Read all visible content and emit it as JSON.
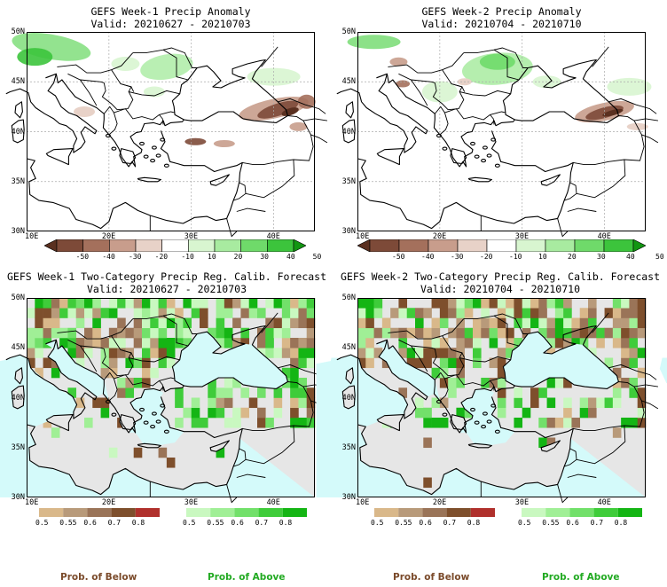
{
  "panels": [
    {
      "id": "p1",
      "title": "GEFS Week-1 Precip Anomaly",
      "valid": "Valid: 20210627 - 20210703"
    },
    {
      "id": "p2",
      "title": "GEFS Week-2 Precip Anomaly",
      "valid": "Valid: 20210704 - 20210710"
    },
    {
      "id": "p3",
      "title": "GEFS Week-1 Two-Category Precip Reg. Calib. Forecast",
      "valid": "Valid: 20210627 - 20210703"
    },
    {
      "id": "p4",
      "title": "GEFS Week-2 Two-Category Precip Reg. Calib. Forecast",
      "valid": "Valid: 20210704 - 20210710"
    }
  ],
  "axes": {
    "lat_ticks": [
      "50N",
      "45N",
      "40N",
      "35N",
      "30N"
    ],
    "lon_ticks": [
      "10E",
      "20E",
      "30E",
      "40E"
    ]
  },
  "anomaly_colorbar": {
    "labels": [
      "-50",
      "-40",
      "-30",
      "-20",
      "-10",
      "10",
      "20",
      "30",
      "40",
      "50"
    ],
    "colors": [
      "#5a3020",
      "#7d4a38",
      "#a4705c",
      "#c89d8c",
      "#e8d2c8",
      "#ffffff",
      "#d8f5d0",
      "#a8eba0",
      "#6fda6a",
      "#3cc43c",
      "#129612"
    ]
  },
  "prob_colorbars": {
    "below": {
      "labels": [
        "0.5",
        "0.55",
        "0.6",
        "0.7",
        "0.8"
      ],
      "colors": [
        "#d9b88a",
        "#b89a7a",
        "#9a7458",
        "#7e4f2c",
        "#b0302c"
      ]
    },
    "above": {
      "labels": [
        "0.5",
        "0.55",
        "0.6",
        "0.7",
        "0.8"
      ],
      "colors": [
        "#c9f8c0",
        "#a0ef96",
        "#72e06a",
        "#3fcc3a",
        "#14b514"
      ]
    }
  },
  "prob_labels": {
    "below": "Prob. of Below",
    "above": "Prob. of Above"
  },
  "colors": {
    "sea_prob": "#d4fafa",
    "land_noskill": "#e6e6e6",
    "grid": "#aaaaaa",
    "below_text": "#7a4a2a",
    "above_text": "#22aa22"
  },
  "chart_data": [
    {
      "type": "heatmap",
      "title": "GEFS Week-1 Precip Anomaly",
      "subtitle": "Valid: 20210627 - 20210703",
      "x_range": [
        10,
        45
      ],
      "y_range": [
        30,
        50
      ],
      "xlabel": "",
      "ylabel": "",
      "units": "anomaly (-50 to 50)",
      "grid": true
    },
    {
      "type": "heatmap",
      "title": "GEFS Week-2 Precip Anomaly",
      "subtitle": "Valid: 20210704 - 20210710",
      "x_range": [
        10,
        45
      ],
      "y_range": [
        30,
        50
      ],
      "xlabel": "",
      "ylabel": "",
      "units": "anomaly (-50 to 50)",
      "grid": true
    },
    {
      "type": "heatmap",
      "title": "GEFS Week-1 Two-Category Precip Reg. Calib. Forecast",
      "subtitle": "Valid: 20210627 - 20210703",
      "x_range": [
        10,
        45
      ],
      "y_range": [
        30,
        50
      ],
      "xlabel": "",
      "ylabel": "",
      "categories": [
        "Prob. of Below",
        "Prob. of Above"
      ],
      "grid": false
    },
    {
      "type": "heatmap",
      "title": "GEFS Week-2 Two-Category Precip Reg. Calib. Forecast",
      "subtitle": "Valid: 20210704 - 20210710",
      "x_range": [
        10,
        45
      ],
      "y_range": [
        30,
        50
      ],
      "xlabel": "",
      "ylabel": "",
      "categories": [
        "Prob. of Below",
        "Prob. of Above"
      ],
      "grid": false
    }
  ]
}
